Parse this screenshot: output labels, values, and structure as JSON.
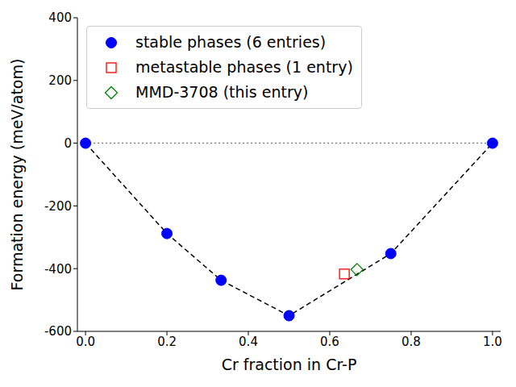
{
  "chart_data": {
    "type": "scatter",
    "xlabel": "Cr fraction in Cr-P",
    "ylabel": "Formation energy (meV/atom)",
    "xlim": [
      -0.02,
      1.02
    ],
    "ylim": [
      -600,
      400
    ],
    "xticks": [
      {
        "value": 0,
        "label": "0.0"
      },
      {
        "value": 0.2,
        "label": "0.2"
      },
      {
        "value": 0.4,
        "label": "0.4"
      },
      {
        "value": 0.6,
        "label": "0.6"
      },
      {
        "value": 0.8,
        "label": "0.8"
      },
      {
        "value": 1,
        "label": "1.0"
      }
    ],
    "yticks": [
      -600,
      -400,
      -200,
      0,
      200,
      400
    ],
    "legend": "upper left",
    "series": [
      {
        "name": "stable phases (6 entries)",
        "color": "#0000ff",
        "marker": "circle",
        "line_style": "dashed",
        "x": [
          0,
          0.2,
          0.333,
          0.5,
          0.75,
          1
        ],
        "values": [
          0,
          -288,
          -437,
          -550,
          -352,
          0
        ]
      },
      {
        "name": "metastable phases (1 entry)",
        "color": "#ff0000",
        "marker": "square",
        "x": [
          0.636
        ],
        "values": [
          -417
        ]
      },
      {
        "name": "MMD-3708 (this entry)",
        "color": "#008000",
        "marker": "diamond",
        "x": [
          0.667
        ],
        "values": [
          -403
        ]
      }
    ]
  }
}
